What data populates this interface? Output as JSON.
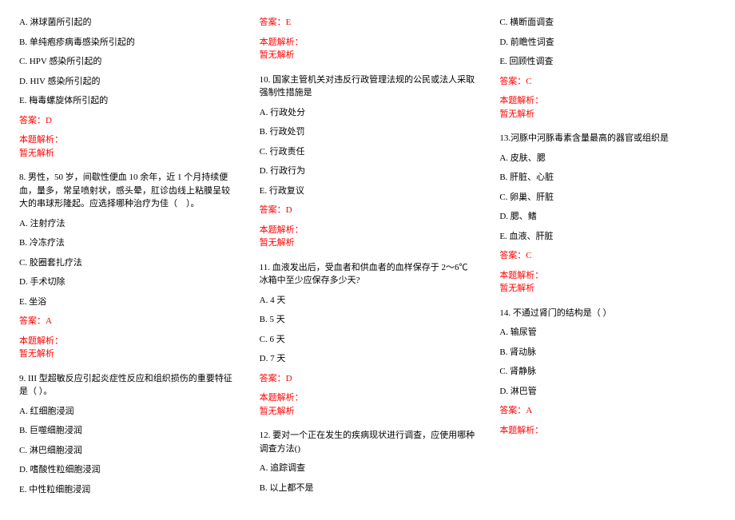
{
  "q7": {
    "opts": {
      "A": "A. 淋球菌所引起的",
      "B": "B. 单纯疱疹病毒感染所引起的",
      "C": "C. HPV 感染所引起的",
      "D": "D. HIV 感染所引起的",
      "E": "E. 梅毒螺旋体所引起的"
    },
    "answer": "答案：D",
    "analysis_label": "本题解析：",
    "analysis_text": "暂无解析"
  },
  "q8": {
    "stem": "8. 男性，50 岁，间歇性便血 10 余年，近 1 个月持续便血，量多，常呈喷射状，感头晕，肛诊齿线上粘膜呈较大的串球形隆起。应选择哪种治疗为佳（　）。",
    "opts": {
      "A": "A. 注射疗法",
      "B": "B. 冷冻疗法",
      "C": "C. 胶圈套扎疗法",
      "D": "D. 手术切除",
      "E": "E. 坐浴"
    },
    "answer": "答案：A",
    "analysis_label": "本题解析：",
    "analysis_text": "暂无解析"
  },
  "q9": {
    "stem": "9. III 型超敏反应引起炎症性反应和组织损伤的重要特征是（ ）。",
    "opts": {
      "A": "A. 红细胞浸润",
      "B": "B. 巨噬细胞浸润",
      "C": "C. 淋巴细胞浸润",
      "D": "D. 嗜酸性粒细胞浸润",
      "E": "E. 中性粒细胞浸润"
    },
    "answer": "答案：E",
    "analysis_label": "本题解析：",
    "analysis_text": "暂无解析"
  },
  "q10": {
    "stem": "10. 国家主管机关对违反行政管理法规的公民或法人采取强制性措施是",
    "opts": {
      "A": "A. 行政处分",
      "B": "B. 行政处罚",
      "C": "C. 行政责任",
      "D": "D. 行政行为",
      "E": "E. 行政复议"
    },
    "answer": "答案：D",
    "analysis_label": "本题解析：",
    "analysis_text": "暂无解析"
  },
  "q11": {
    "stem": "11. 血液发出后，受血者和供血者的血样保存于 2～6℃冰箱中至少应保存多少天?",
    "opts": {
      "A": "A. 4 天",
      "B": "B. 5 天",
      "C": "C. 6 天",
      "D": "D. 7 天"
    },
    "answer": "答案：D",
    "analysis_label": "本题解析：",
    "analysis_text": "暂无解析"
  },
  "q12": {
    "stem": "12. 要对一个正在发生的疾病现状进行调查，应使用哪种调查方法()",
    "opts": {
      "A": "A. 追踪调查",
      "B": "B. 以上都不是",
      "C": "C. 横断面调查",
      "D": "D. 前瞻性词查",
      "E": "E. 回顾性调查"
    },
    "answer": "答案：C",
    "analysis_label": "本题解析：",
    "analysis_text": "暂无解析"
  },
  "q13": {
    "stem": "13.河豚中河豚毒素含量最高的器官或组织是",
    "opts": {
      "A": "A. 皮肤、腮",
      "B": "B. 肝脏、心脏",
      "C": "C. 卵巢、肝脏",
      "D": "D. 腮、鳍",
      "E": "E. 血液、肝脏"
    },
    "answer": "答案：C",
    "analysis_label": "本题解析：",
    "analysis_text": "暂无解析"
  },
  "q14": {
    "stem": "14. 不通过肾门的结构是（ ）",
    "opts": {
      "A": "A. 输尿管",
      "B": "B. 肾动脉",
      "C": "C. 肾静脉",
      "D": "D. 淋巴管"
    },
    "answer": "答案：A",
    "analysis_label": "本题解析："
  }
}
